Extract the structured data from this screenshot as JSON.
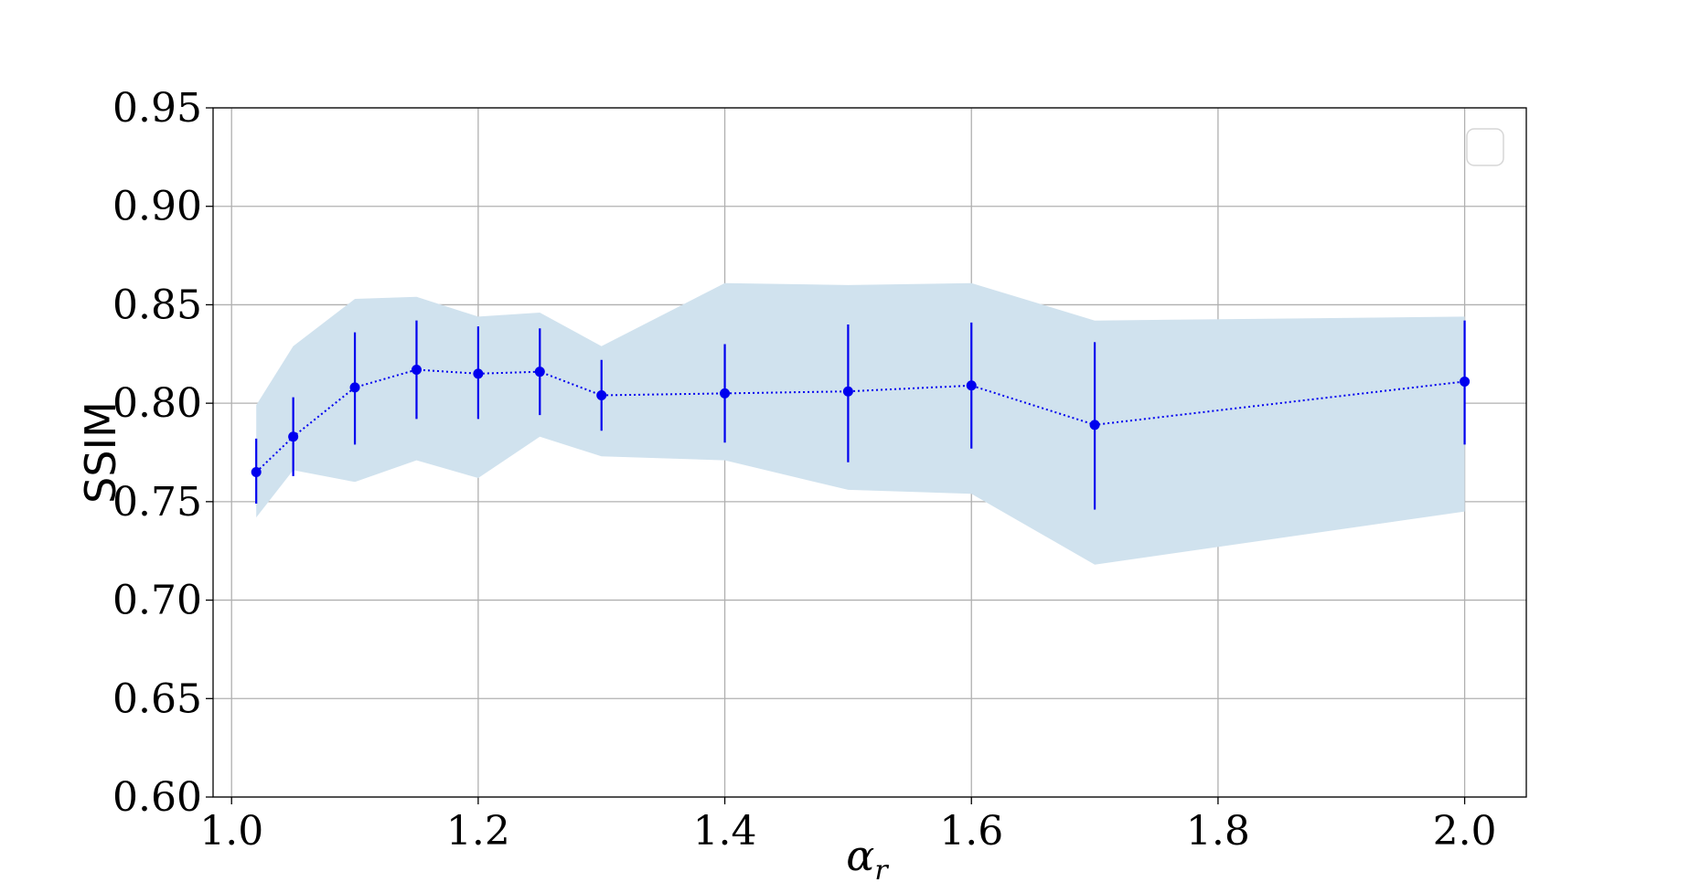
{
  "chart_data": {
    "type": "line",
    "title": "",
    "xlabel": "α",
    "xlabel_subscript": "r",
    "ylabel": "SSIM",
    "xlim": [
      0.985,
      2.05
    ],
    "ylim": [
      0.6,
      0.95
    ],
    "xticks": [
      "1.0",
      "1.2",
      "1.4",
      "1.6",
      "1.8",
      "2.0"
    ],
    "yticks": [
      "0.60",
      "0.65",
      "0.70",
      "0.75",
      "0.80",
      "0.85",
      "0.90",
      "0.95"
    ],
    "grid": true,
    "legend": {
      "placement": "top-right",
      "entries": []
    },
    "colors": {
      "line": "#0000ee",
      "band": "#d0e2ee",
      "grid": "#b0b0b0"
    },
    "series": [
      {
        "x": [
          1.02,
          1.05,
          1.1,
          1.15,
          1.2,
          1.25,
          1.3,
          1.4,
          1.5,
          1.6,
          1.7,
          2.0
        ],
        "y": [
          0.765,
          0.783,
          0.808,
          0.817,
          0.815,
          0.816,
          0.804,
          0.805,
          0.806,
          0.809,
          0.789,
          0.811
        ],
        "err_low": [
          0.749,
          0.763,
          0.779,
          0.792,
          0.792,
          0.794,
          0.786,
          0.78,
          0.77,
          0.777,
          0.746,
          0.779
        ],
        "err_high": [
          0.782,
          0.803,
          0.836,
          0.842,
          0.839,
          0.838,
          0.822,
          0.83,
          0.84,
          0.841,
          0.831,
          0.842
        ],
        "band_low": [
          0.742,
          0.766,
          0.76,
          0.771,
          0.762,
          0.783,
          0.773,
          0.771,
          0.756,
          0.754,
          0.718,
          0.745
        ],
        "band_high": [
          0.799,
          0.829,
          0.853,
          0.854,
          0.844,
          0.846,
          0.829,
          0.861,
          0.86,
          0.861,
          0.842,
          0.844
        ]
      }
    ]
  }
}
